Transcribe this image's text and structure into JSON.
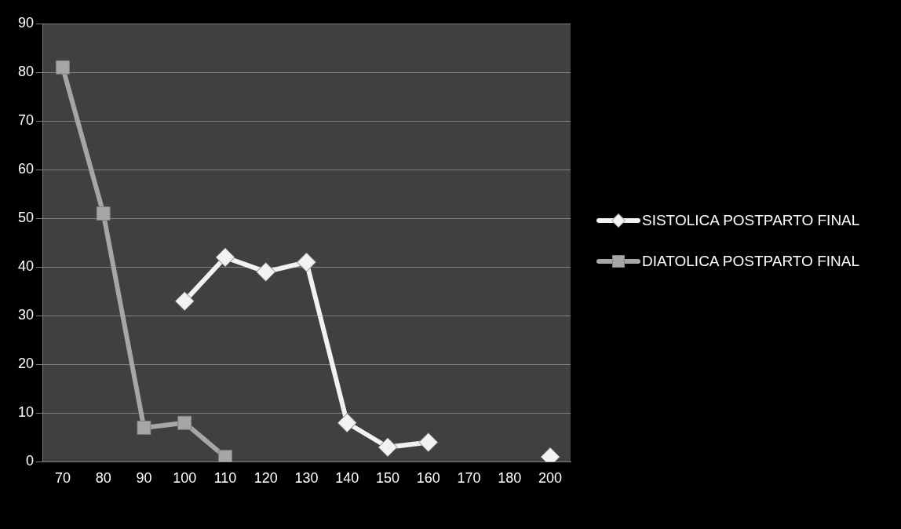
{
  "chart_data": {
    "type": "line",
    "categories": [
      "70",
      "80",
      "90",
      "100",
      "110",
      "120",
      "130",
      "140",
      "150",
      "160",
      "170",
      "180",
      "200"
    ],
    "series": [
      {
        "name": "SISTOLICA POSTPARTO FINAL",
        "color": "#f2f2f2",
        "marker": "diamond",
        "values": [
          null,
          null,
          null,
          33,
          42,
          39,
          41,
          8,
          3,
          4,
          null,
          null,
          1
        ]
      },
      {
        "name": "DIATOLICA POSTPARTO FINAL",
        "color": "#a6a6a6",
        "marker": "square",
        "values": [
          81,
          51,
          7,
          8,
          1,
          null,
          null,
          null,
          null,
          null,
          null,
          null,
          null
        ]
      }
    ],
    "ylim": [
      0,
      90
    ],
    "yticks": [
      0,
      10,
      20,
      30,
      40,
      50,
      60,
      70,
      80,
      90
    ],
    "grid": "y",
    "legend": "right"
  }
}
